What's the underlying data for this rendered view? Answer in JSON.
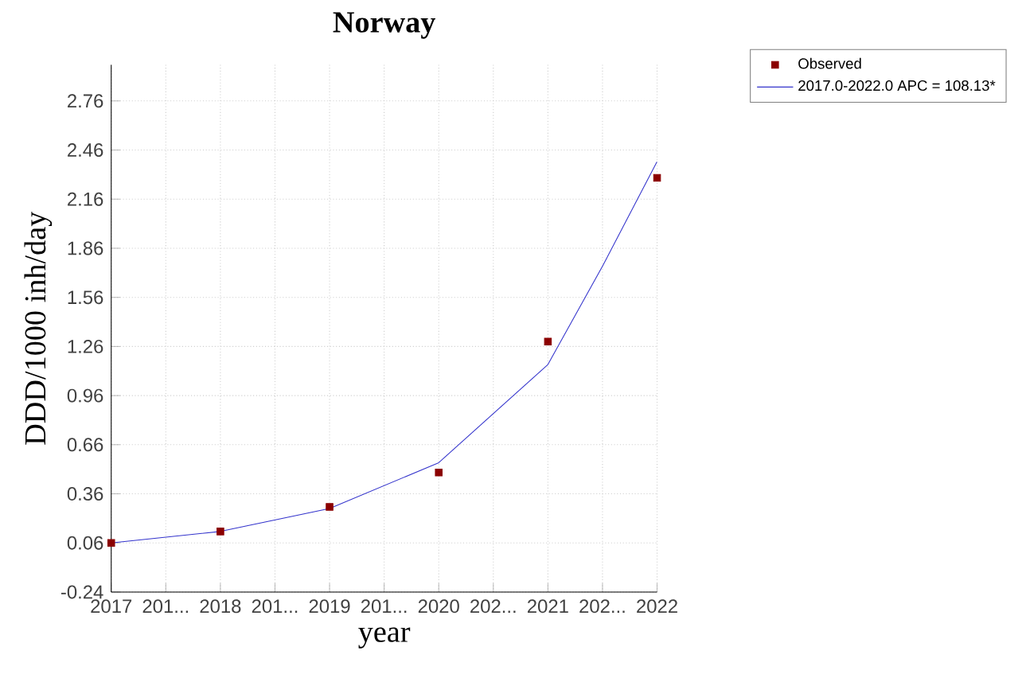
{
  "chart_data": {
    "type": "scatter",
    "title": "Norway",
    "xlabel": "year",
    "ylabel": "DDD/1000 inh/day",
    "series": [
      {
        "name": "Observed",
        "color": "#8b0000",
        "marker": "square",
        "x": [
          2017,
          2018,
          2019,
          2020,
          2021,
          2022
        ],
        "values": [
          0.06,
          0.13,
          0.28,
          0.49,
          1.29,
          2.29
        ]
      },
      {
        "name": "2017.0-2022.0 APC  = 108.13*",
        "type": "line",
        "color": "#3333cc",
        "marker": "none",
        "x": [
          2017,
          2018,
          2019,
          2020,
          2021,
          2021.5,
          2022
        ],
        "values": [
          0.06,
          0.13,
          0.27,
          0.55,
          1.15,
          1.75,
          2.39
        ]
      }
    ],
    "xlim": [
      2017,
      2022
    ],
    "ylim": [
      -0.24,
      2.98
    ],
    "xticks": [
      2017,
      {
        "value": 2017.5,
        "label": "201..."
      },
      2018,
      {
        "value": 2018.5,
        "label": "201..."
      },
      2019,
      {
        "value": 2019.5,
        "label": "201..."
      },
      2020,
      {
        "value": 2020.5,
        "label": "202..."
      },
      2021,
      {
        "value": 2021.5,
        "label": "202..."
      },
      2022
    ],
    "yticks": [
      -0.24,
      0.06,
      0.36,
      0.66,
      0.96,
      1.26,
      1.56,
      1.86,
      2.16,
      2.46,
      2.76
    ],
    "grid": true,
    "legend": "top right"
  }
}
